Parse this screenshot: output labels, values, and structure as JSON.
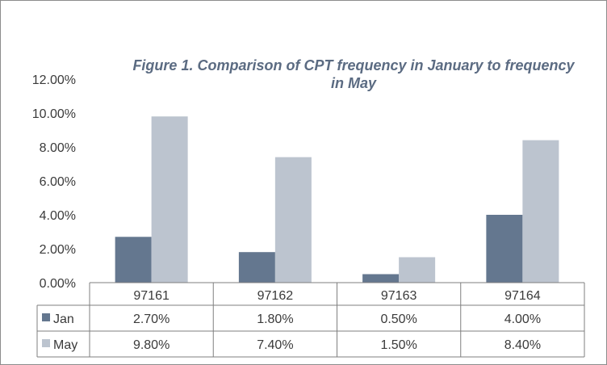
{
  "chart_data": {
    "type": "bar",
    "title_line1": "Figure 1. Comparison of CPT frequency in January to frequency",
    "title_line2": "in May",
    "categories": [
      "97161",
      "97162",
      "97163",
      "97164"
    ],
    "series": [
      {
        "name": "Jan",
        "values": [
          2.7,
          1.8,
          0.5,
          4.0
        ],
        "labels": [
          "2.70%",
          "1.80%",
          "0.50%",
          "4.00%"
        ],
        "color": "#64778f"
      },
      {
        "name": "May",
        "values": [
          9.8,
          7.4,
          1.5,
          8.4
        ],
        "labels": [
          "9.80%",
          "7.40%",
          "1.50%",
          "8.40%"
        ],
        "color": "#bcc4cf"
      }
    ],
    "y_ticks": [
      "0.00%",
      "2.00%",
      "4.00%",
      "6.00%",
      "8.00%",
      "10.00%",
      "12.00%"
    ],
    "ylim": [
      0,
      12
    ],
    "grid": false,
    "legend": "data-table"
  }
}
